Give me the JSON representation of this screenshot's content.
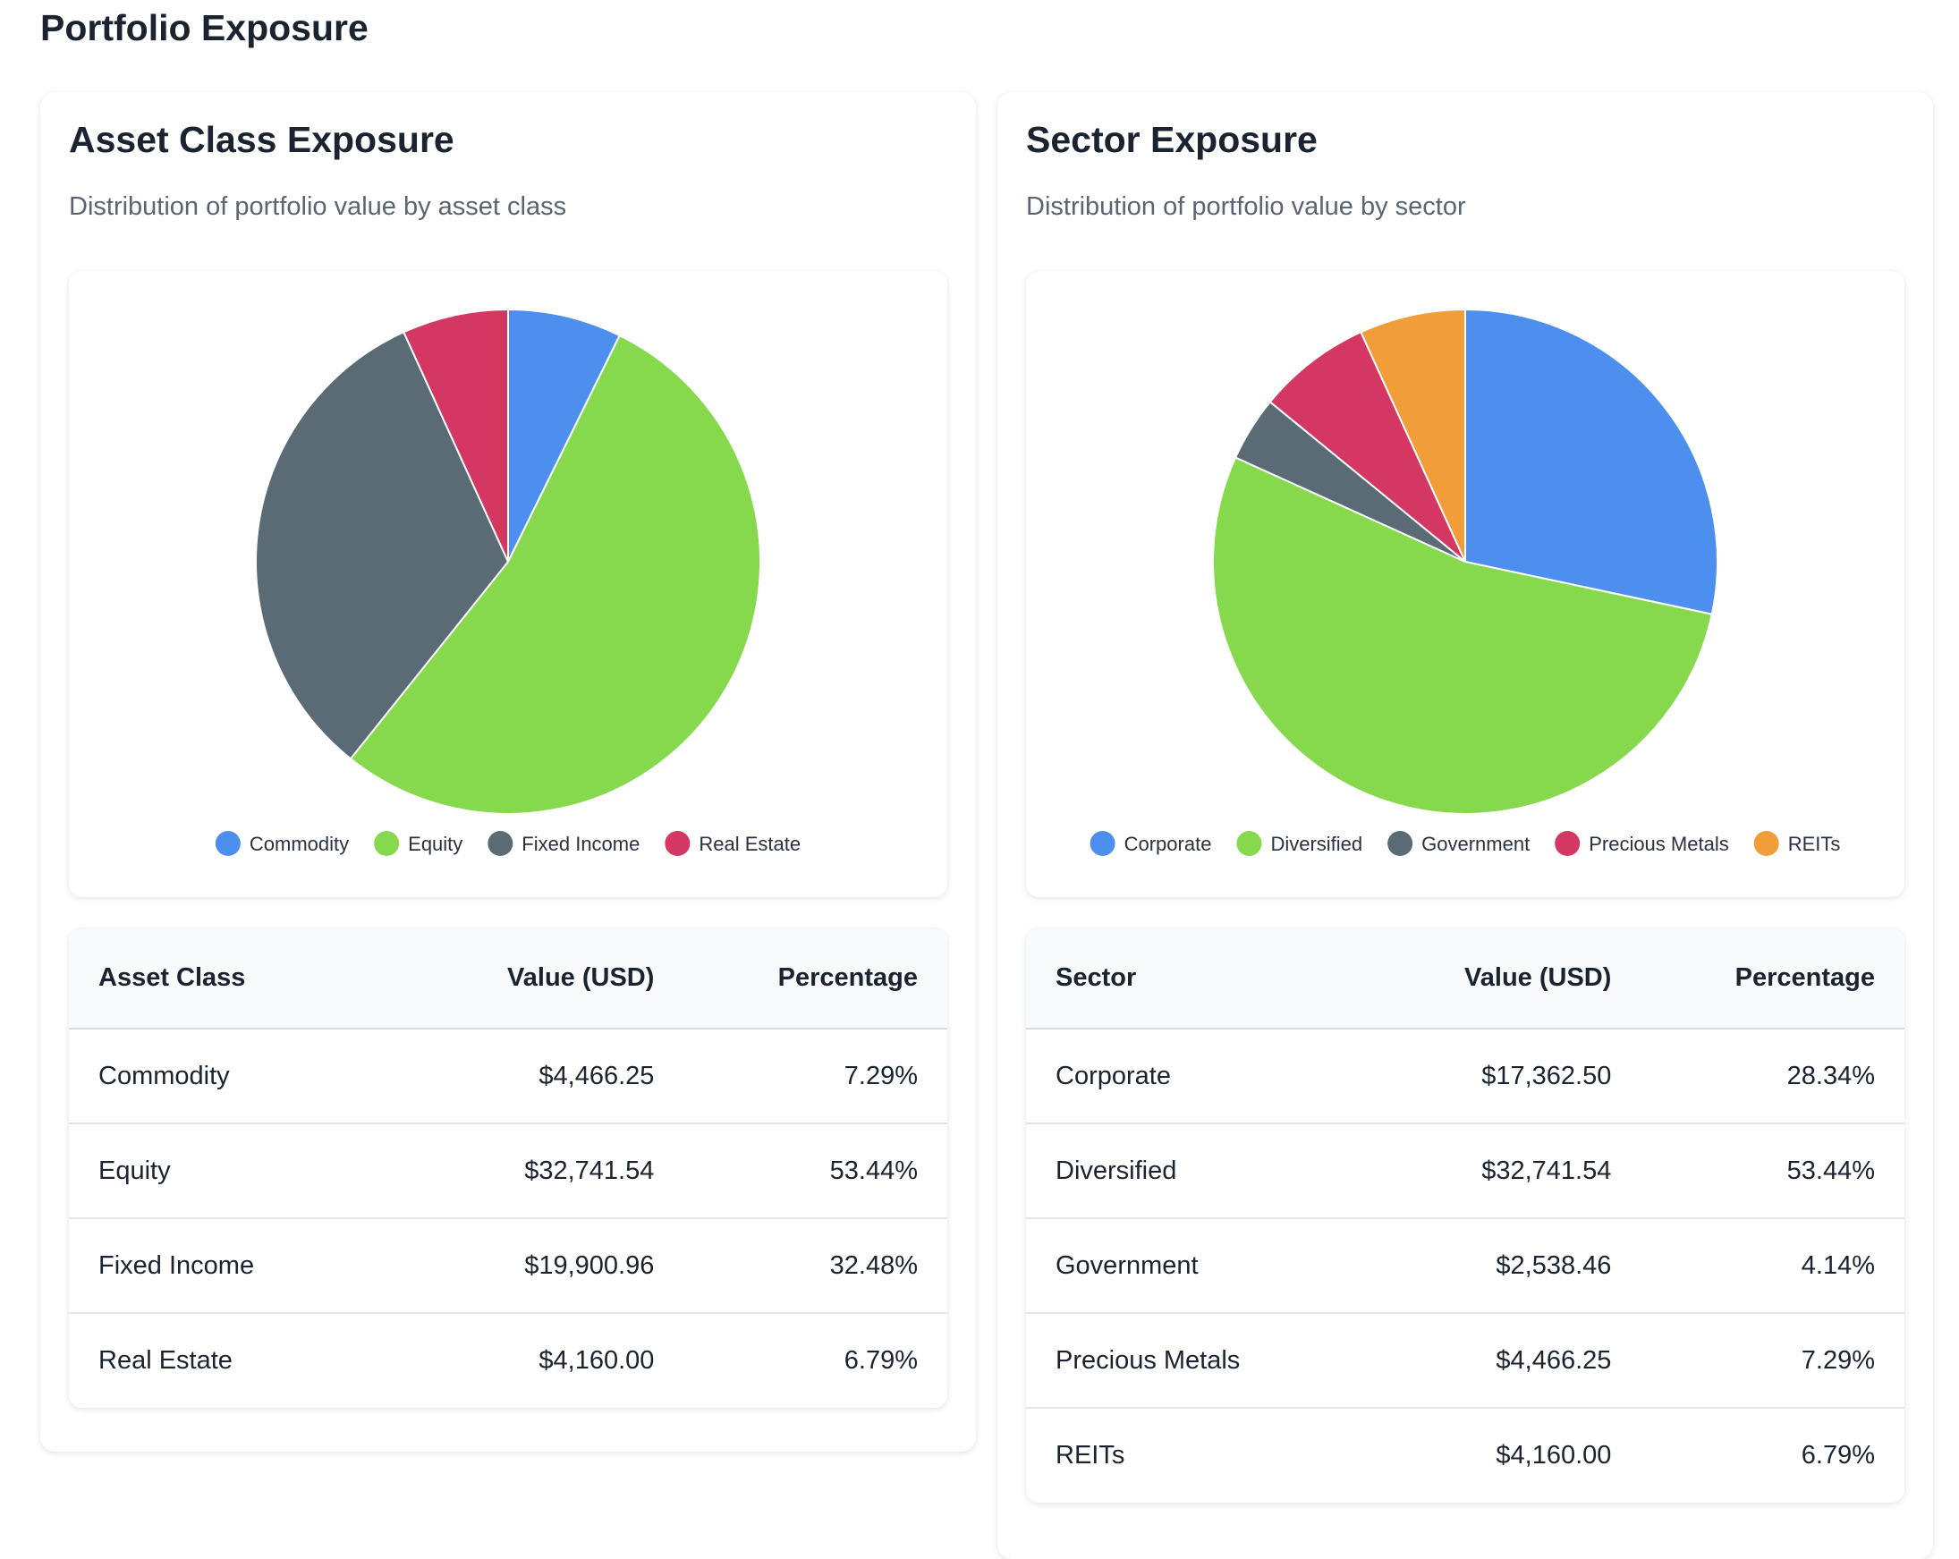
{
  "page": {
    "title": "Portfolio Exposure"
  },
  "asset_card": {
    "title": "Asset Class Exposure",
    "subtitle": "Distribution of portfolio value by asset class",
    "table": {
      "headers": [
        "Asset Class",
        "Value (USD)",
        "Percentage"
      ],
      "rows": [
        [
          "Commodity",
          "$4,466.25",
          "7.29%"
        ],
        [
          "Equity",
          "$32,741.54",
          "53.44%"
        ],
        [
          "Fixed Income",
          "$19,900.96",
          "32.48%"
        ],
        [
          "Real Estate",
          "$4,160.00",
          "6.79%"
        ]
      ]
    }
  },
  "sector_card": {
    "title": "Sector Exposure",
    "subtitle": "Distribution of portfolio value by sector",
    "table": {
      "headers": [
        "Sector",
        "Value (USD)",
        "Percentage"
      ],
      "rows": [
        [
          "Corporate",
          "$17,362.50",
          "28.34%"
        ],
        [
          "Diversified",
          "$32,741.54",
          "53.44%"
        ],
        [
          "Government",
          "$2,538.46",
          "4.14%"
        ],
        [
          "Precious Metals",
          "$4,466.25",
          "7.29%"
        ],
        [
          "REITs",
          "$4,160.00",
          "6.79%"
        ]
      ]
    }
  },
  "chart_data": [
    {
      "type": "pie",
      "title": "Asset Class Exposure",
      "categories": [
        "Commodity",
        "Equity",
        "Fixed Income",
        "Real Estate"
      ],
      "values": [
        4466.25,
        32741.54,
        19900.96,
        4160.0
      ],
      "colors": [
        "#4d8fef",
        "#86d94d",
        "#5a6b75",
        "#d43761"
      ],
      "legend": "bottom"
    },
    {
      "type": "pie",
      "title": "Sector Exposure",
      "categories": [
        "Corporate",
        "Diversified",
        "Government",
        "Precious Metals",
        "REITs"
      ],
      "values": [
        17362.5,
        32741.54,
        2538.46,
        4466.25,
        4160.0
      ],
      "colors": [
        "#4d8fef",
        "#86d94d",
        "#5a6b75",
        "#d43761",
        "#f19e3a"
      ],
      "legend": "bottom"
    }
  ]
}
